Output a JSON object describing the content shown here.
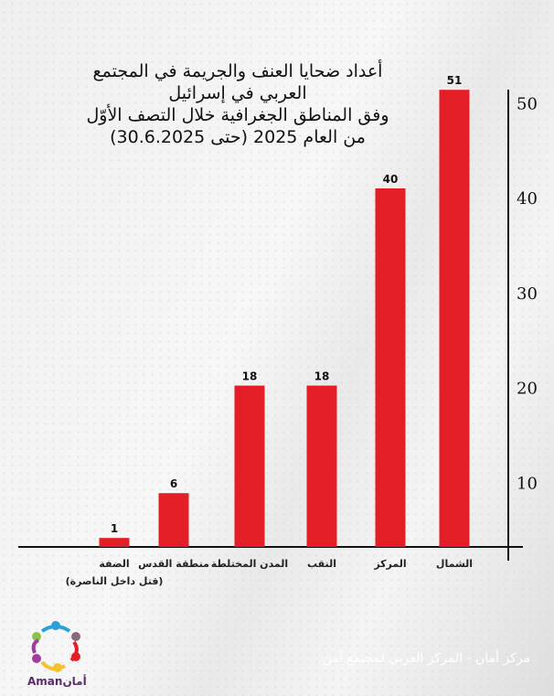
{
  "title_lines": [
    "أعداد ضحايا العنف والجريمة في المجتمع",
    "العربي في إسرائيل",
    "وفق المناطق الجغرافية خلال التصف الأوّل",
    "من العام 2025 (حتى 30.6.2025)"
  ],
  "chart_data": {
    "type": "bar",
    "title": "أعداد ضحايا العنف والجريمة في المجتمع العربي في إسرائيل وفق المناطق الجغرافية خلال التصف الأوّل من العام 2025 (حتى 30.6.2025)",
    "categories": [
      "الشمال",
      "المركز",
      "النقب",
      "المدن المختلطة",
      "منطقة القدس",
      "الضفة"
    ],
    "category_notes": [
      "",
      "",
      "",
      "",
      "",
      "(قتل داخل الناصرة)"
    ],
    "values": [
      51,
      40,
      18,
      18,
      6,
      1
    ],
    "yticks": [
      10,
      20,
      30,
      40,
      50
    ],
    "ylim": [
      0,
      52
    ],
    "yaxis_side": "right",
    "bar_color": "#e41e26",
    "grid": false
  },
  "footer": "مركز أمان - المركز العربي لمجتمع آمن",
  "logo_text": "Amanأمان"
}
